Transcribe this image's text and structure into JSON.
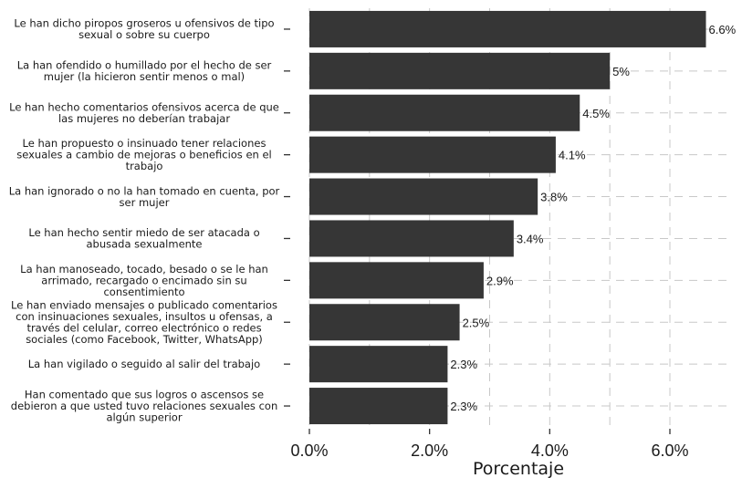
{
  "chart_data": {
    "type": "bar",
    "orientation": "horizontal",
    "categories": [
      "Le han dicho piropos groseros u ofensivos de tipo\nsexual o sobre su cuerpo",
      "La han ofendido o humillado por el hecho de ser\nmujer (la hicieron sentir menos o mal)",
      "Le han hecho comentarios ofensivos acerca de que\nlas mujeres no deberían trabajar",
      "Le han propuesto o insinuado tener relaciones\nsexuales a cambio de mejoras o beneficios en el\ntrabajo",
      "La han ignorado o no la han tomado en cuenta, por\nser mujer",
      "Le han hecho sentir miedo de ser atacada o\nabusada sexualmente",
      "La han manoseado, tocado, besado o se le han\narrimado, recargado o encimado sin su\nconsentimiento",
      "Le han enviado mensajes o publicado comentarios\ncon insinuaciones sexuales, insultos u ofensas, a\ntravés del celular, correo electrónico o redes\nsociales (como Facebook, Twitter, WhatsApp)",
      "La han vigilado o seguido al salir del trabajo",
      "Han comentado que sus logros o ascensos se\ndebieron a que usted tuvo relaciones sexuales con\nalgún superior"
    ],
    "values": [
      6.6,
      5.0,
      4.5,
      4.1,
      3.8,
      3.4,
      2.9,
      2.5,
      2.3,
      2.3
    ],
    "value_labels": [
      "6.6%",
      "5%",
      "4.5%",
      "4.1%",
      "3.8%",
      "3.4%",
      "2.9%",
      "2.5%",
      "2.3%",
      "2.3%"
    ],
    "xlim": [
      0,
      7.1
    ],
    "xticks": [
      0,
      2,
      4,
      6
    ],
    "xtick_labels": [
      "0.0%",
      "2.0%",
      "4.0%",
      "6.0%"
    ],
    "xlabel": "Porcentaje",
    "ylabel": "",
    "title": "",
    "grid": "dashed",
    "colors": {
      "bar": "#363636",
      "grid": "#c8c8c8",
      "text": "#1a1a1a"
    }
  }
}
